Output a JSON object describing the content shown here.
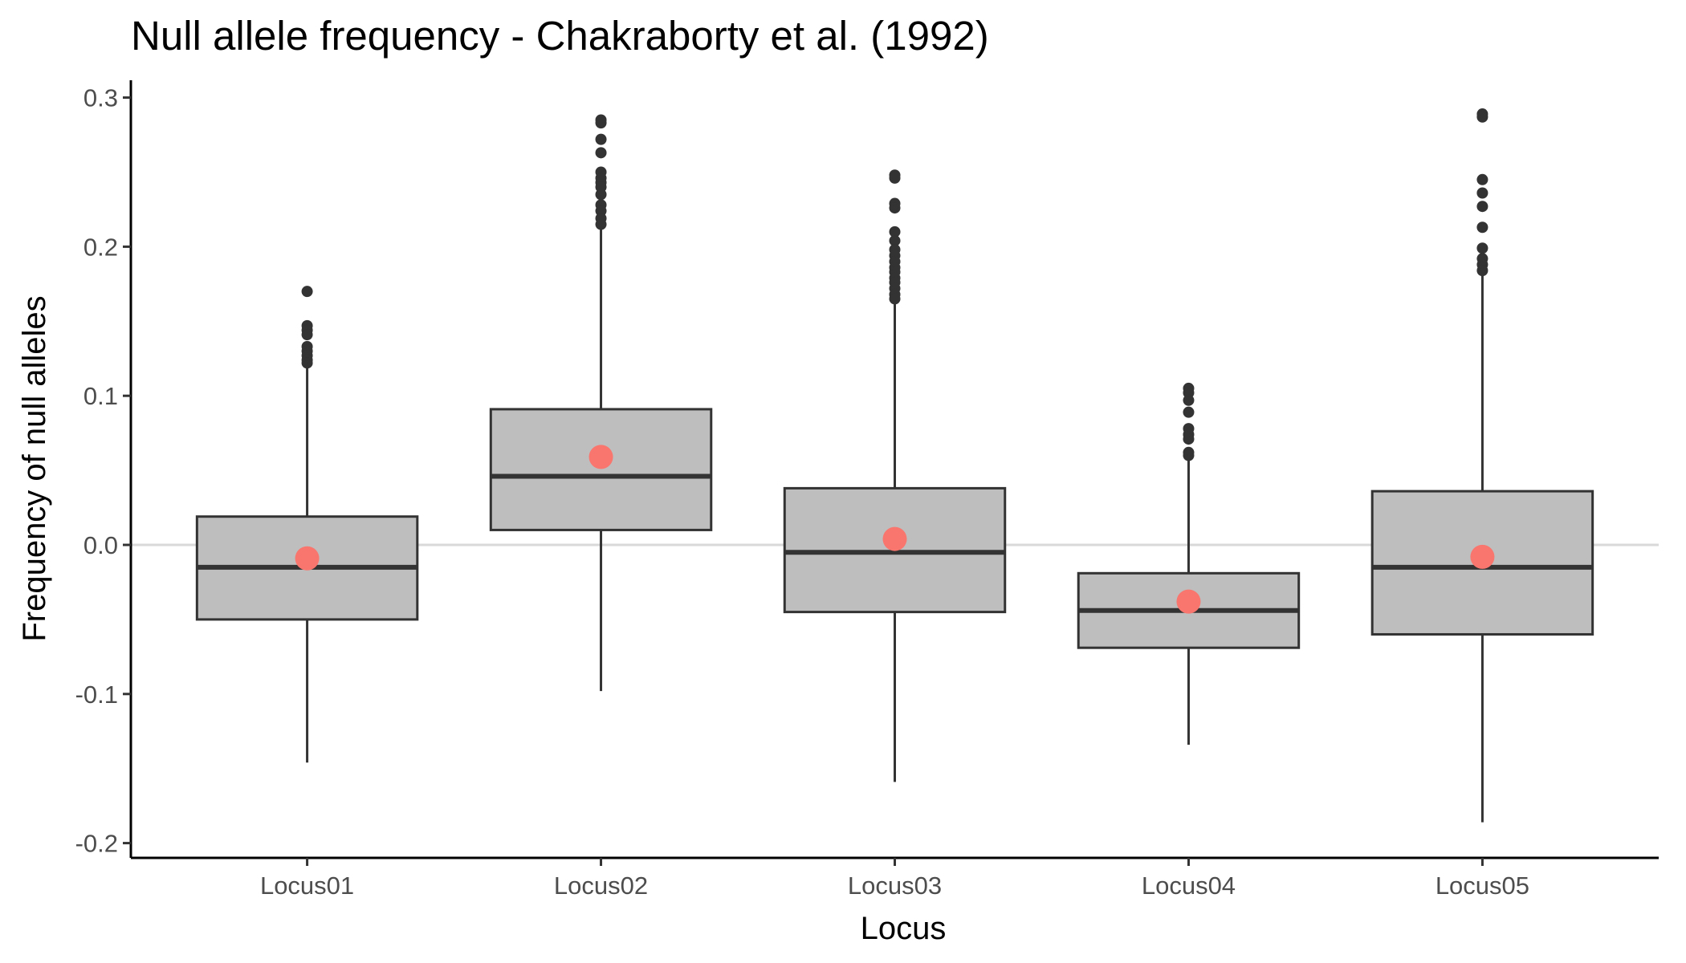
{
  "chart_data": {
    "type": "box",
    "title": "Null allele frequency - Chakraborty et al. (1992)",
    "xlabel": "Locus",
    "ylabel": "Frequency of null alleles",
    "ylim": [
      -0.21,
      0.31
    ],
    "yticks": [
      {
        "value": -0.2,
        "label": "-0.2"
      },
      {
        "value": -0.1,
        "label": "-0.1"
      },
      {
        "value": 0.0,
        "label": "0.0"
      },
      {
        "value": 0.1,
        "label": "0.1"
      },
      {
        "value": 0.2,
        "label": "0.2"
      },
      {
        "value": 0.3,
        "label": "0.3"
      }
    ],
    "grid": false,
    "reference_line": 0.0,
    "colors": {
      "box_fill": "#bebebe",
      "box_stroke": "#333333",
      "mean_point": "#f8766d",
      "outlier": "#333333",
      "reference_line": "#d9d9d9",
      "axis": "#000000"
    },
    "categories": [
      "Locus01",
      "Locus02",
      "Locus03",
      "Locus04",
      "Locus05"
    ],
    "boxes": [
      {
        "category": "Locus01",
        "whisker_low": -0.146,
        "q1": -0.05,
        "median": -0.015,
        "q3": 0.019,
        "whisker_high": 0.12,
        "mean": -0.009,
        "outliers": [
          0.17,
          0.147,
          0.144,
          0.141,
          0.133,
          0.13,
          0.127,
          0.124,
          0.122
        ]
      },
      {
        "category": "Locus02",
        "whisker_low": -0.098,
        "q1": 0.01,
        "median": 0.046,
        "q3": 0.091,
        "whisker_high": 0.213,
        "mean": 0.059,
        "outliers": [
          0.285,
          0.283,
          0.272,
          0.263,
          0.25,
          0.246,
          0.243,
          0.24,
          0.235,
          0.228,
          0.224,
          0.219,
          0.215
        ]
      },
      {
        "category": "Locus03",
        "whisker_low": -0.159,
        "q1": -0.045,
        "median": -0.005,
        "q3": 0.038,
        "whisker_high": 0.162,
        "mean": 0.004,
        "outliers": [
          0.248,
          0.246,
          0.229,
          0.226,
          0.21,
          0.204,
          0.198,
          0.194,
          0.19,
          0.186,
          0.183,
          0.179,
          0.176,
          0.172,
          0.168,
          0.165
        ]
      },
      {
        "category": "Locus04",
        "whisker_low": -0.134,
        "q1": -0.069,
        "median": -0.044,
        "q3": -0.019,
        "whisker_high": 0.058,
        "mean": -0.038,
        "outliers": [
          0.105,
          0.102,
          0.097,
          0.089,
          0.078,
          0.074,
          0.071,
          0.062,
          0.06
        ]
      },
      {
        "category": "Locus05",
        "whisker_low": -0.186,
        "q1": -0.06,
        "median": -0.015,
        "q3": 0.036,
        "whisker_high": 0.181,
        "mean": -0.008,
        "outliers": [
          0.289,
          0.287,
          0.245,
          0.236,
          0.227,
          0.213,
          0.199,
          0.192,
          0.188,
          0.184
        ]
      }
    ]
  }
}
